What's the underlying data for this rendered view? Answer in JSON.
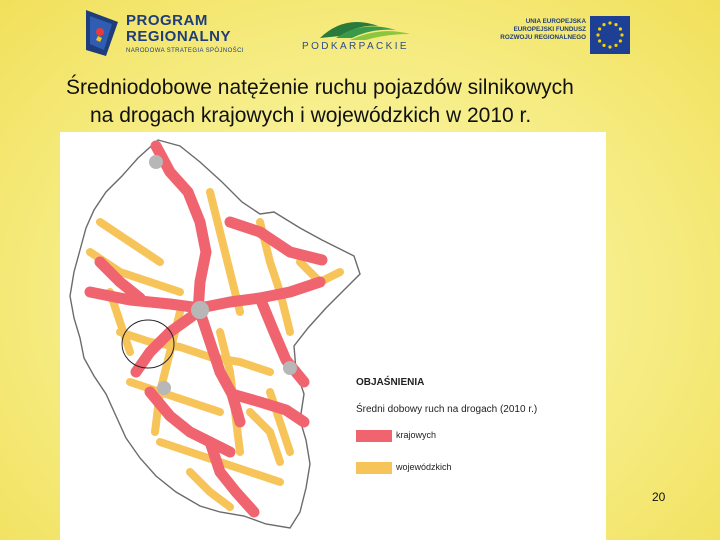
{
  "header": {
    "program_logo_line1": "PROGRAM",
    "program_logo_line2": "REGIONALNY",
    "program_logo_tagline": "NARODOWA STRATEGIA SPÓJNOŚCI",
    "region_logo_text": "PODKARPACKIE",
    "eu_logo_lines": [
      "UNIA EUROPEJSKA",
      "EUROPEJSKI FUNDUSZ",
      "ROZWOJU REGIONALNEGO"
    ]
  },
  "title": {
    "line1": "Średniodobowe natężenie ruchu pojazdów silnikowych",
    "line2": "na drogach krajowych i wojewódzkich w 2010 r."
  },
  "map": {
    "legend_title": "OBJAŚNIENIA",
    "legend_subtitle": "Średni dobowy ruch na drogach (2010 r.)",
    "legend_items": [
      {
        "label": "krajowych",
        "color": "#f06470"
      },
      {
        "label": "wojewódzkich",
        "color": "#f7c45a"
      }
    ],
    "colors": {
      "national_road": "#f06470",
      "voivodeship_road": "#f7c45a",
      "city": "#b7b7b7"
    }
  },
  "footer": {
    "page_number": "20"
  }
}
